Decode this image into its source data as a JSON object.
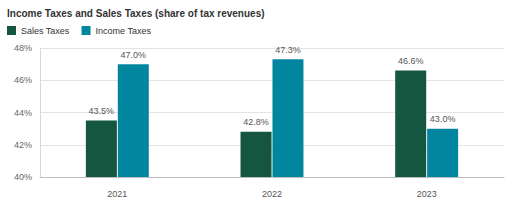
{
  "chart_data": {
    "type": "bar",
    "title": "Income Taxes and Sales Taxes (share of tax revenues)",
    "categories": [
      "2021",
      "2022",
      "2023"
    ],
    "series": [
      {
        "name": "Sales Taxes",
        "color": "#14563f",
        "values": [
          43.5,
          42.8,
          46.6
        ],
        "value_labels": [
          "43.5%",
          "42.8%",
          "46.6%"
        ]
      },
      {
        "name": "Income Taxes",
        "color": "#0286a0",
        "values": [
          47.0,
          47.3,
          43.0
        ],
        "value_labels": [
          "47.0%",
          "47.3%",
          "43.0%"
        ]
      }
    ],
    "ylim": [
      40,
      48
    ],
    "yticks": [
      {
        "value": 40,
        "label": "40%"
      },
      {
        "value": 42,
        "label": "42%"
      },
      {
        "value": 44,
        "label": "44%"
      },
      {
        "value": 46,
        "label": "46%"
      },
      {
        "value": 48,
        "label": "48%"
      }
    ],
    "grid": true,
    "legend": "top-left",
    "data_labels": true
  }
}
